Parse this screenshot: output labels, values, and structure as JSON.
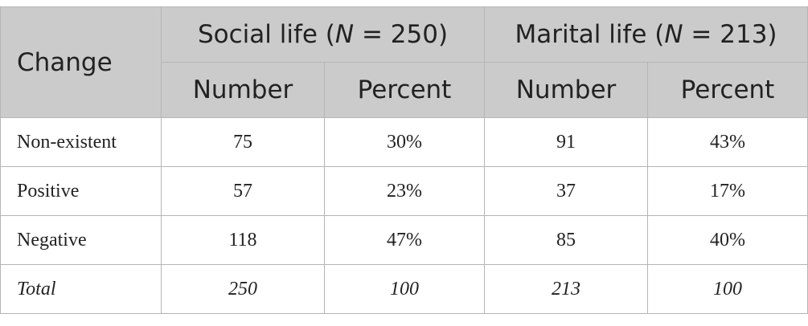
{
  "table": {
    "header": {
      "first": "Change",
      "groups": [
        {
          "parts": [
            "Social life (",
            "N",
            " = 250)"
          ]
        },
        {
          "parts": [
            "Marital life (",
            "N",
            " = 213)"
          ]
        }
      ]
    },
    "subheaders": [
      "Number",
      "Percent",
      "Number",
      "Percent"
    ],
    "rows": [
      [
        "Non-existent",
        "75",
        "30%",
        "91",
        "43%"
      ],
      [
        "Positive",
        "57",
        "23%",
        "37",
        "17%"
      ],
      [
        "Negative",
        "118",
        "47%",
        "85",
        "40%"
      ],
      [
        "Total",
        "250",
        "100",
        "213",
        "100"
      ]
    ]
  }
}
